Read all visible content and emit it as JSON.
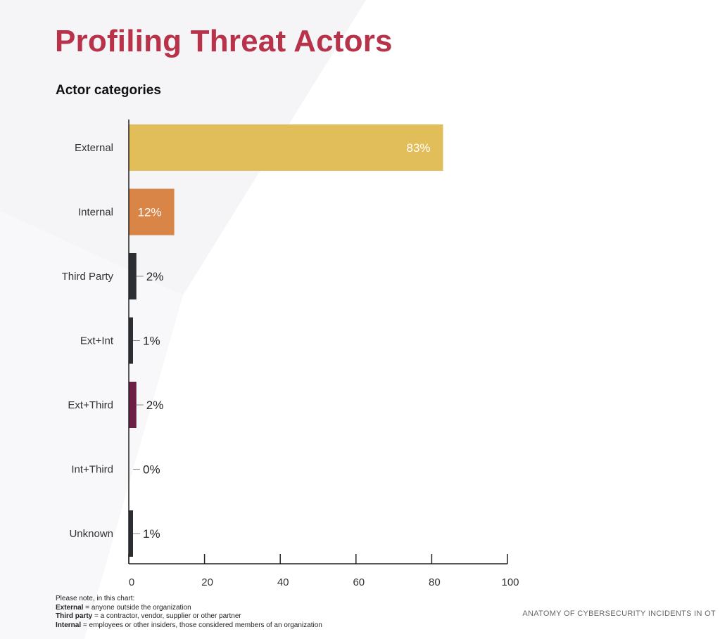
{
  "page": {
    "title": "Profiling Threat Actors",
    "subtitle": "Actor categories",
    "source": "ANATOMY OF CYBERSECURITY INCIDENTS IN OT"
  },
  "notes": {
    "intro": "Please note, in this chart:",
    "items": [
      {
        "term": "External",
        "definition": "= anyone outside the organization"
      },
      {
        "term": "Third party",
        "definition": "= a contractor, vendor, supplier or other partner"
      },
      {
        "term": "Internal",
        "definition": "= employees or other insiders, those considered members of an organization"
      }
    ]
  },
  "chart_data": {
    "type": "bar",
    "orientation": "horizontal",
    "title": "Actor categories",
    "categories": [
      "External",
      "Internal",
      "Third Party",
      "Ext+Int",
      "Ext+Third",
      "Int+Third",
      "Unknown"
    ],
    "values": [
      83,
      12,
      2,
      1,
      2,
      0,
      1
    ],
    "value_labels": [
      "83%",
      "12%",
      "2%",
      "1%",
      "2%",
      "0%",
      "1%"
    ],
    "colors": [
      "#e2be5a",
      "#d98547",
      "#2b2e33",
      "#2b2e33",
      "#6b1f45",
      "#2b2e33",
      "#2b2e33"
    ],
    "label_colors": [
      "#ffffff",
      "#ffffff",
      "#222222",
      "#222222",
      "#222222",
      "#222222",
      "#222222"
    ],
    "xlim": [
      0,
      100
    ],
    "xticks": [
      0,
      20,
      40,
      60,
      80,
      100
    ],
    "grid": false,
    "legend": "none"
  }
}
